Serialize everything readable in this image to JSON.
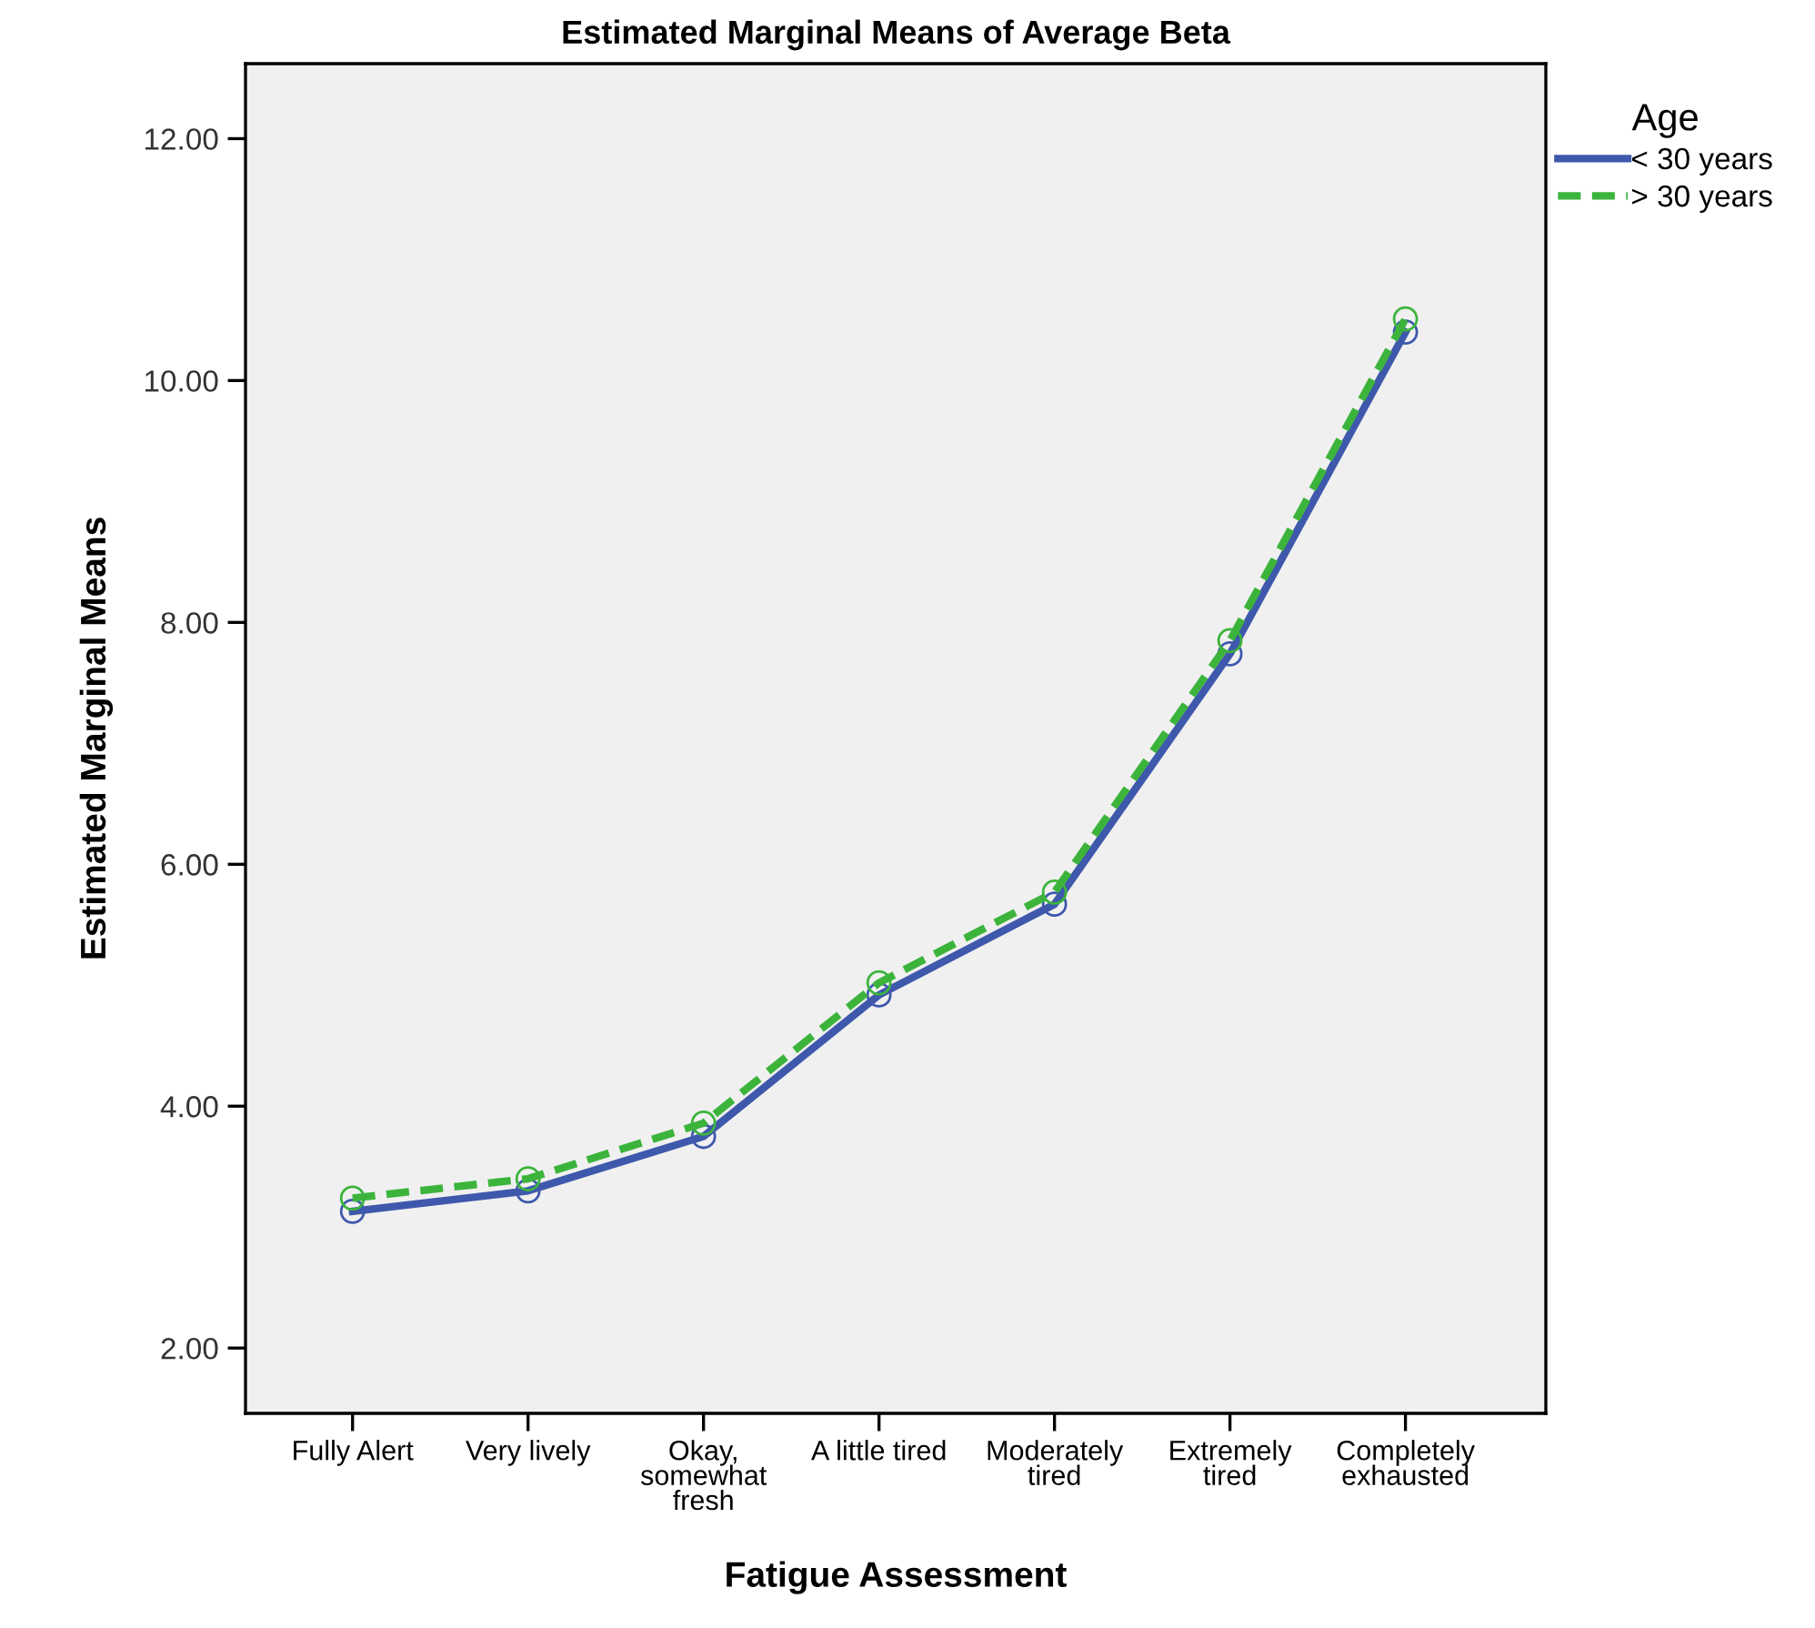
{
  "chart_data": {
    "type": "line",
    "title": "Estimated Marginal Means of Average Beta",
    "xlabel": "Fatigue Assessment",
    "ylabel": "Estimated Marginal Means",
    "legend_title": "Age",
    "categories": [
      "Fully Alert",
      "Very lively",
      "Okay,\nsomewhat\nfresh",
      "A little tired",
      "Moderately\ntired",
      "Extremely\ntired",
      "Completely\nexhausted"
    ],
    "series": [
      {
        "name": "< 30 years",
        "color": "#3e58ac",
        "line_style": "solid",
        "values": [
          3.13,
          3.3,
          3.75,
          4.92,
          5.67,
          7.74,
          10.4
        ]
      },
      {
        "name": "> 30 years",
        "color": "#3cb43c",
        "line_style": "dashed",
        "values": [
          3.24,
          3.4,
          3.86,
          5.02,
          5.77,
          7.85,
          10.51
        ]
      }
    ],
    "ylim": [
      1.46,
      12.62
    ],
    "yticks": [
      {
        "value": 2,
        "label": "2.00"
      },
      {
        "value": 4,
        "label": "4.00"
      },
      {
        "value": 6,
        "label": "6.00"
      },
      {
        "value": 8,
        "label": "8.00"
      },
      {
        "value": 10,
        "label": "10.00"
      },
      {
        "value": 12,
        "label": "12.00"
      }
    ],
    "grid": false,
    "legend": "top right",
    "marker": "circle"
  }
}
